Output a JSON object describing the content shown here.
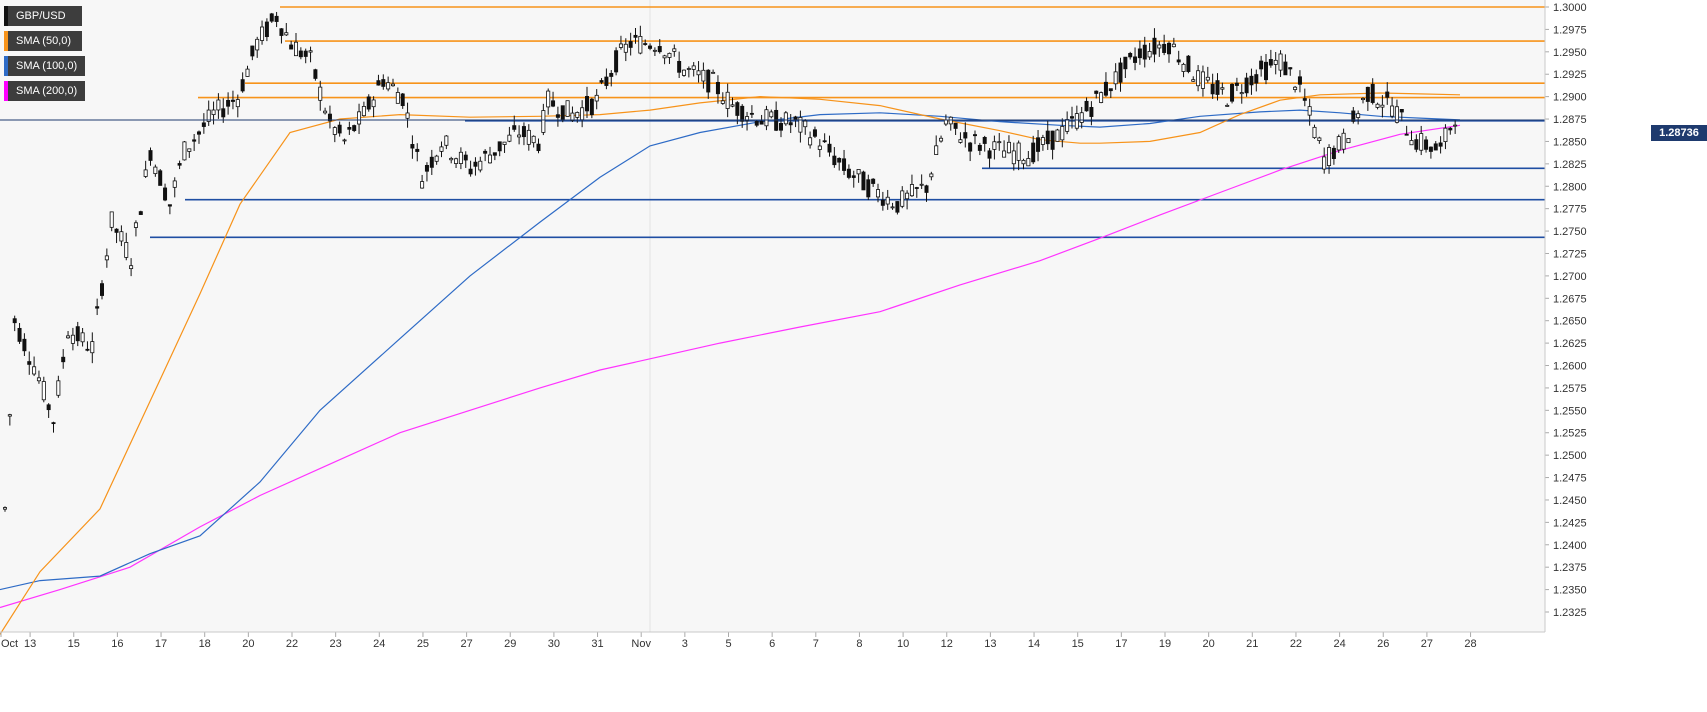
{
  "chart_data": {
    "type": "candlestick",
    "title": "",
    "symbol": "GBP/USD",
    "last_price": "1.28736",
    "y_axis": {
      "position": "right",
      "ylim": [
        1.23,
        1.3012
      ],
      "ticks": [
        "1.3000",
        "1.2975",
        "1.2950",
        "1.2925",
        "1.2900",
        "1.2875",
        "1.2850",
        "1.2825",
        "1.2800",
        "1.2775",
        "1.2750",
        "1.2725",
        "1.2700",
        "1.2675",
        "1.2650",
        "1.2625",
        "1.2600",
        "1.2575",
        "1.2550",
        "1.2525",
        "1.2500",
        "1.2475",
        "1.2450",
        "1.2425",
        "1.2400",
        "1.2375",
        "1.2350",
        "1.2325"
      ]
    },
    "x_axis": {
      "labels": [
        "Oct",
        "13",
        "15",
        "16",
        "17",
        "18",
        "20",
        "22",
        "23",
        "24",
        "25",
        "27",
        "29",
        "30",
        "31",
        "Nov",
        "3",
        "5",
        "6",
        "7",
        "8",
        "10",
        "12",
        "13",
        "14",
        "15",
        "17",
        "19",
        "20",
        "21",
        "22",
        "24",
        "26",
        "27",
        "28"
      ],
      "label_index": [
        0,
        6,
        15,
        24,
        33,
        42,
        51,
        60,
        69,
        78,
        87,
        96,
        105,
        114,
        123,
        132,
        141,
        150,
        159,
        168,
        177,
        186,
        195,
        204,
        213,
        222,
        231,
        240,
        249,
        258,
        267,
        276,
        285,
        294,
        303
      ],
      "num_slots": 306
    },
    "legend": [
      {
        "label": "GBP/USD",
        "color": "#111111"
      },
      {
        "label": "SMA (50,0)",
        "color": "#f7931a"
      },
      {
        "label": "SMA (100,0)",
        "color": "#2e6bc6"
      },
      {
        "label": "SMA (200,0)",
        "color": "#ff00ff"
      }
    ],
    "colors": {
      "up": "#ffffff",
      "down": "#111111",
      "wick": "#111111",
      "orange": "#f7931a",
      "blue": "#1f4ea3",
      "sma50": "#f7931a",
      "sma100": "#2e6bc6",
      "sma200": "#ff33ff"
    },
    "hlines": [
      {
        "value": 1.3,
        "color": "orange",
        "from": 280,
        "to": 1545
      },
      {
        "value": 1.2962,
        "color": "orange",
        "from": 285,
        "to": 1545
      },
      {
        "value": 1.2915,
        "color": "orange",
        "from": 245,
        "to": 1545
      },
      {
        "value": 1.2899,
        "color": "orange",
        "from": 198,
        "to": 1545
      },
      {
        "value": 1.2873,
        "color": "blue",
        "from": 465,
        "to": 1545
      },
      {
        "value": 1.282,
        "color": "blue",
        "from": 982,
        "to": 1545
      },
      {
        "value": 1.2785,
        "color": "blue",
        "from": 185,
        "to": 1545
      },
      {
        "value": 1.2743,
        "color": "blue",
        "from": 150,
        "to": 1545
      }
    ],
    "candles_hourly4": [
      [
        1.244,
        1.266,
        1.225,
        1.265
      ],
      [
        1.265,
        1.27,
        1.26,
        1.268
      ],
      [
        1.268,
        1.269,
        1.262,
        1.264
      ],
      [
        1.264,
        1.265,
        1.258,
        1.261
      ],
      [
        1.261,
        1.262,
        1.254,
        1.256
      ],
      [
        1.256,
        1.262,
        1.252,
        1.26
      ],
      [
        1.26,
        1.266,
        1.258,
        1.264
      ],
      [
        1.264,
        1.27,
        1.261,
        1.269
      ],
      [
        1.269,
        1.276,
        1.266,
        1.274
      ],
      [
        1.274,
        1.28,
        1.27,
        1.278
      ],
      [
        1.278,
        1.283,
        1.27,
        1.272
      ],
      [
        1.272,
        1.285,
        1.266,
        1.284
      ],
      [
        1.284,
        1.287,
        1.276,
        1.281
      ],
      [
        1.281,
        1.283,
        1.275,
        1.279
      ],
      [
        1.279,
        1.299,
        1.278,
        1.285
      ],
      [
        1.285,
        1.289,
        1.28,
        1.287
      ],
      [
        1.287,
        1.29,
        1.284,
        1.286
      ],
      [
        1.286,
        1.292,
        1.285,
        1.291
      ],
      [
        1.291,
        1.297,
        1.289,
        1.295
      ],
      [
        1.295,
        1.301,
        1.293,
        1.299
      ]
    ],
    "sma50": [
      [
        0,
        1.23
      ],
      [
        40,
        1.237
      ],
      [
        100,
        1.244
      ],
      [
        150,
        1.256
      ],
      [
        200,
        1.268
      ],
      [
        240,
        1.278
      ],
      [
        290,
        1.286
      ],
      [
        340,
        1.2875
      ],
      [
        400,
        1.288
      ],
      [
        470,
        1.2877
      ],
      [
        540,
        1.2878
      ],
      [
        600,
        1.288
      ],
      [
        650,
        1.2885
      ],
      [
        700,
        1.2893
      ],
      [
        760,
        1.29
      ],
      [
        820,
        1.2897
      ],
      [
        880,
        1.289
      ],
      [
        940,
        1.2875
      ],
      [
        1000,
        1.2862
      ],
      [
        1040,
        1.2852
      ],
      [
        1080,
        1.2848
      ],
      [
        1100,
        1.2848
      ],
      [
        1150,
        1.285
      ],
      [
        1200,
        1.286
      ],
      [
        1240,
        1.288
      ],
      [
        1280,
        1.2896
      ],
      [
        1320,
        1.2902
      ],
      [
        1380,
        1.2904
      ],
      [
        1420,
        1.2903
      ],
      [
        1460,
        1.2902
      ]
    ],
    "sma100": [
      [
        0,
        1.235
      ],
      [
        40,
        1.236
      ],
      [
        100,
        1.2365
      ],
      [
        150,
        1.239
      ],
      [
        200,
        1.241
      ],
      [
        260,
        1.247
      ],
      [
        320,
        1.255
      ],
      [
        400,
        1.263
      ],
      [
        470,
        1.27
      ],
      [
        540,
        1.276
      ],
      [
        600,
        1.281
      ],
      [
        650,
        1.2845
      ],
      [
        700,
        1.286
      ],
      [
        760,
        1.2872
      ],
      [
        820,
        1.288
      ],
      [
        880,
        1.2882
      ],
      [
        940,
        1.2878
      ],
      [
        1000,
        1.2872
      ],
      [
        1060,
        1.2868
      ],
      [
        1100,
        1.2866
      ],
      [
        1150,
        1.287
      ],
      [
        1200,
        1.2878
      ],
      [
        1260,
        1.2883
      ],
      [
        1300,
        1.2885
      ],
      [
        1340,
        1.2882
      ],
      [
        1380,
        1.2878
      ],
      [
        1420,
        1.2876
      ],
      [
        1460,
        1.2874
      ]
    ],
    "sma200": [
      [
        0,
        1.233
      ],
      [
        60,
        1.235
      ],
      [
        130,
        1.2375
      ],
      [
        200,
        1.242
      ],
      [
        260,
        1.2455
      ],
      [
        330,
        1.249
      ],
      [
        400,
        1.2525
      ],
      [
        470,
        1.255
      ],
      [
        540,
        1.2575
      ],
      [
        600,
        1.2595
      ],
      [
        660,
        1.261
      ],
      [
        720,
        1.2625
      ],
      [
        800,
        1.2643
      ],
      [
        880,
        1.266
      ],
      [
        960,
        1.269
      ],
      [
        1040,
        1.2717
      ],
      [
        1100,
        1.2742
      ],
      [
        1160,
        1.2768
      ],
      [
        1220,
        1.2793
      ],
      [
        1280,
        1.2818
      ],
      [
        1340,
        1.284
      ],
      [
        1400,
        1.2858
      ],
      [
        1460,
        1.2868
      ]
    ]
  }
}
